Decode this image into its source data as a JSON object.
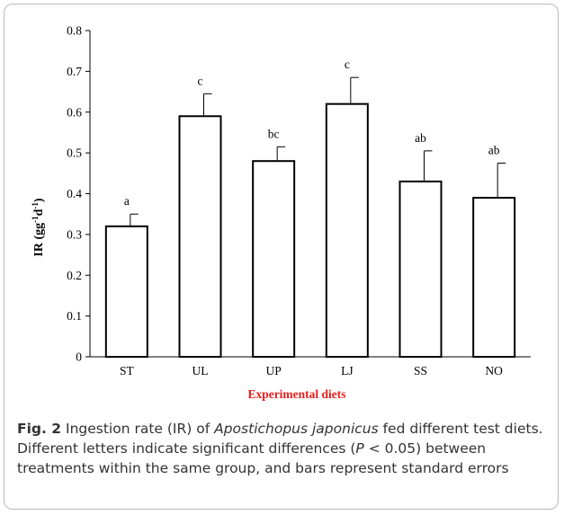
{
  "chart_data": {
    "type": "bar",
    "categories": [
      "ST",
      "UL",
      "UP",
      "LJ",
      "SS",
      "NO"
    ],
    "values": [
      0.32,
      0.59,
      0.48,
      0.62,
      0.43,
      0.39
    ],
    "errors": [
      0.03,
      0.055,
      0.035,
      0.065,
      0.075,
      0.085
    ],
    "significance_letters": [
      "a",
      "c",
      "bc",
      "c",
      "ab",
      "ab"
    ],
    "title": "",
    "xlabel": "Experimental diets",
    "ylabel_parts": {
      "base": "IR (gg",
      "sup1": "-1",
      "mid": "d",
      "sup2": "-1",
      "end": ")"
    },
    "ylim": [
      0,
      0.8
    ],
    "yticks": [
      "0",
      "0.1",
      "0.2",
      "0.3",
      "0.4",
      "0.5",
      "0.6",
      "0.7",
      "0.8"
    ],
    "grid": false,
    "legend": "none",
    "colors": {
      "bar_fill": "#ffffff",
      "bar_stroke": "#000000",
      "xlabel": "#e8201e"
    }
  },
  "caption": {
    "fig_label": "Fig. 2",
    "text_before_species": " Ingestion rate (IR) of ",
    "species": "Apostichopus japonicus",
    "text_after_species": " fed different test diets. Different letters indicate significant differences (",
    "p_symbol": "P",
    "text_after_p": " < 0.05) between treatments within the same group, and bars represent standard errors"
  }
}
